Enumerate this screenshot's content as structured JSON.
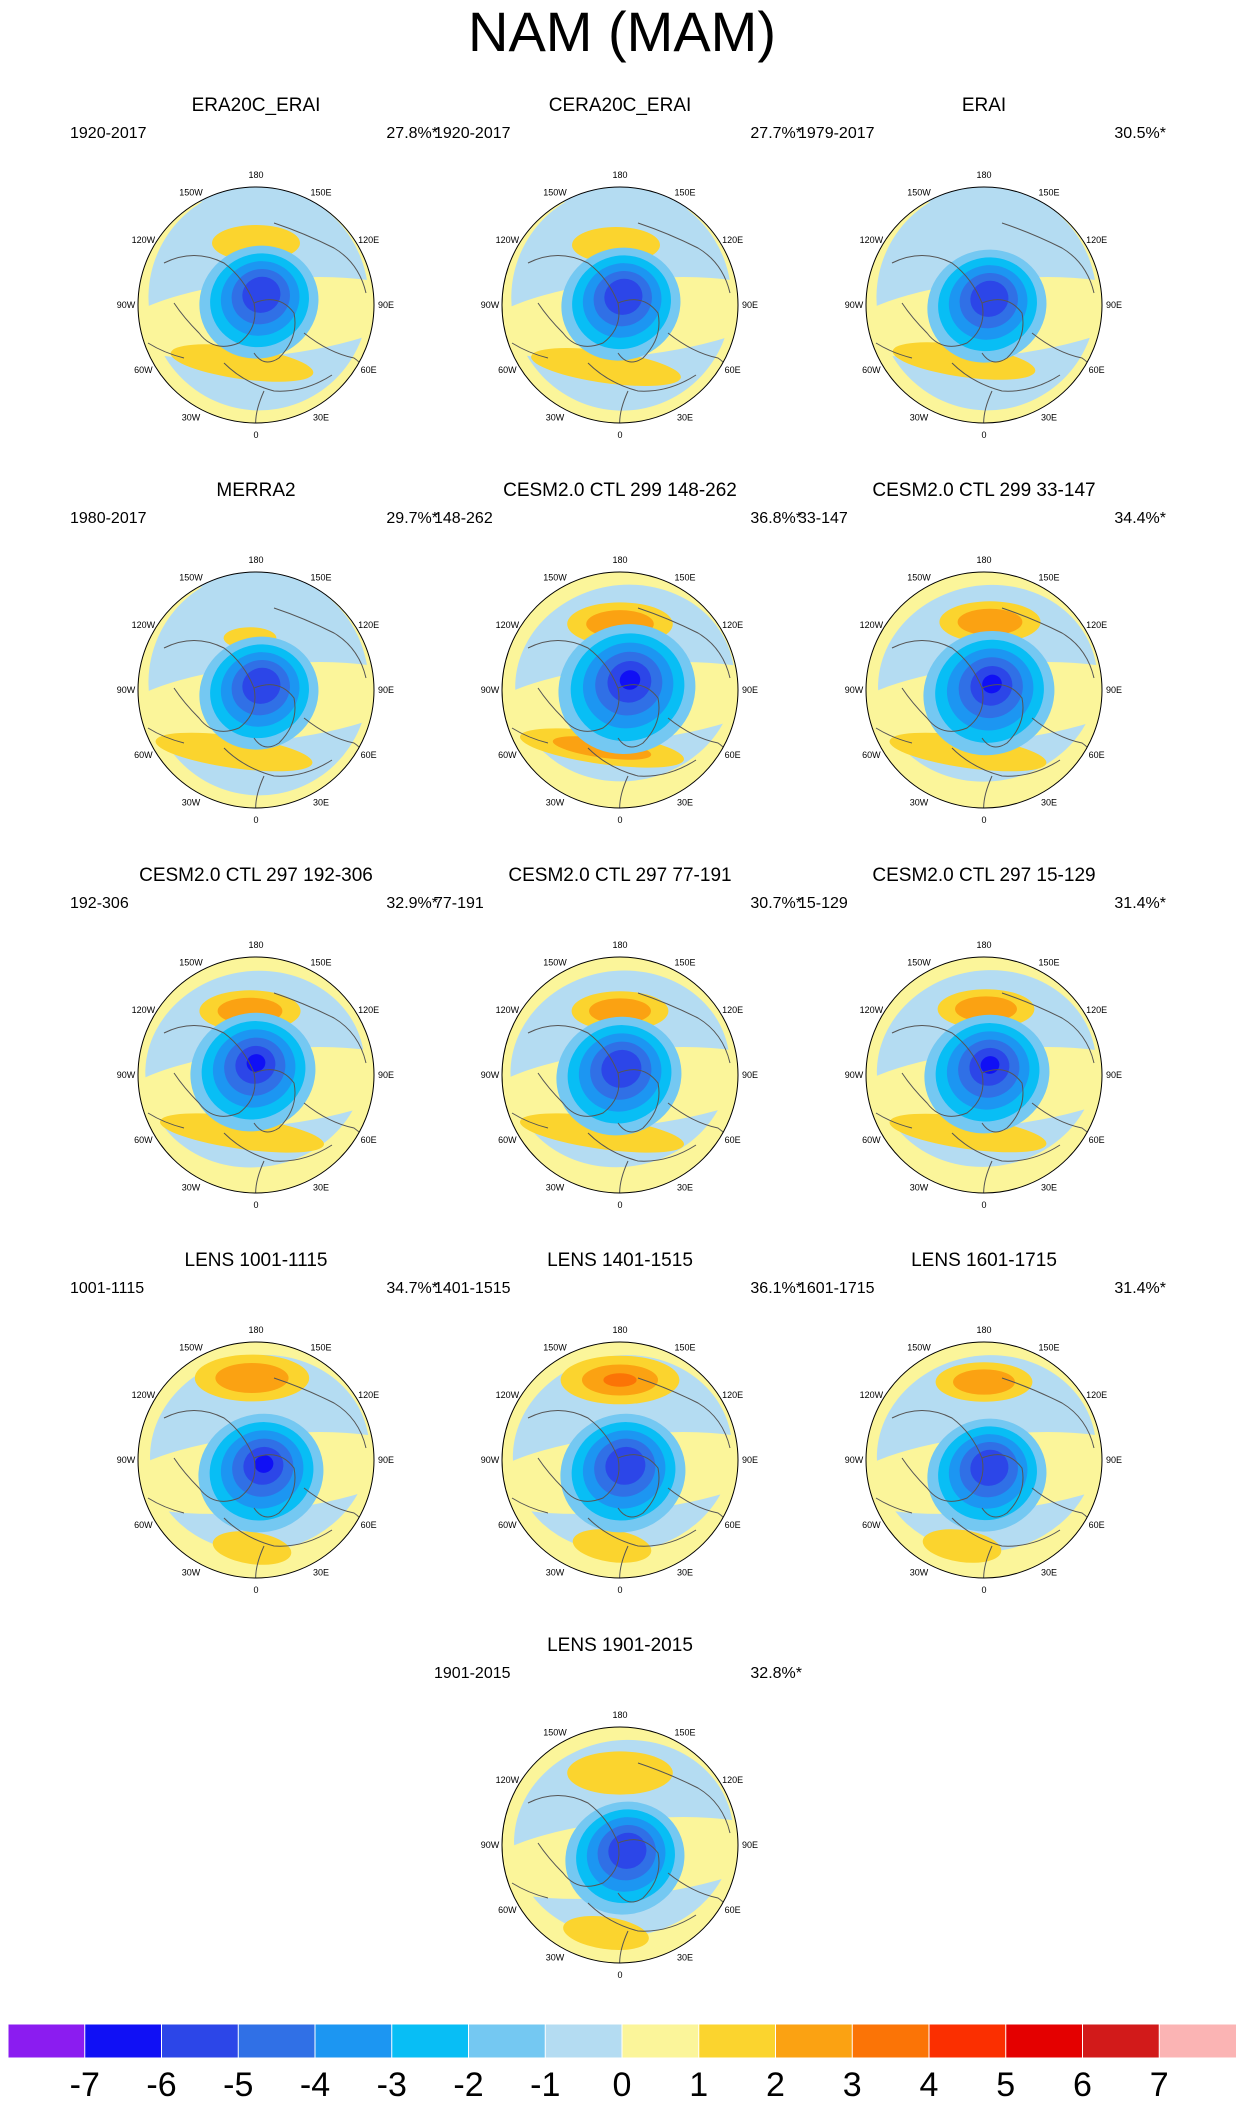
{
  "title": "NAM (MAM)",
  "lon_labels": [
    "180",
    "150E",
    "120E",
    "90E",
    "60E",
    "30E",
    "0",
    "30W",
    "60W",
    "90W",
    "120W",
    "150W"
  ],
  "panels": [
    {
      "title": "ERA20C_ERAI",
      "years": "1920-2017",
      "pct": "27.8%*",
      "style": 0
    },
    {
      "title": "CERA20C_ERAI",
      "years": "1920-2017",
      "pct": "27.7%*",
      "style": 1
    },
    {
      "title": "ERAI",
      "years": "1979-2017",
      "pct": "30.5%*",
      "style": 2
    },
    {
      "title": "MERRA2",
      "years": "1980-2017",
      "pct": "29.7%*",
      "style": 3
    },
    {
      "title": "CESM2.0 CTL 299 148-262",
      "years": "148-262",
      "pct": "36.8%*",
      "style": 4
    },
    {
      "title": "CESM2.0 CTL 299 33-147",
      "years": "33-147",
      "pct": "34.4%*",
      "style": 5
    },
    {
      "title": "CESM2.0 CTL 297 192-306",
      "years": "192-306",
      "pct": "32.9%*",
      "style": 6
    },
    {
      "title": "CESM2.0 CTL 297 77-191",
      "years": "77-191",
      "pct": "30.7%*",
      "style": 7
    },
    {
      "title": "CESM2.0 CTL 297 15-129",
      "years": "15-129",
      "pct": "31.4%*",
      "style": 8
    },
    {
      "title": "LENS 1001-1115",
      "years": "1001-1115",
      "pct": "34.7%*",
      "style": 9
    },
    {
      "title": "LENS 1401-1515",
      "years": "1401-1515",
      "pct": "36.1%*",
      "style": 10
    },
    {
      "title": "LENS 1601-1715",
      "years": "1601-1715",
      "pct": "31.4%*",
      "style": 11
    },
    {
      "title": "LENS 1901-2015",
      "years": "1901-2015",
      "pct": "32.8%*",
      "style": 12
    }
  ],
  "colorbar": {
    "labels": [
      "-7",
      "-6",
      "-5",
      "-4",
      "-3",
      "-2",
      "-1",
      "0",
      "1",
      "2",
      "3",
      "4",
      "5",
      "6",
      "7"
    ],
    "colors": [
      "#8b1cf0",
      "#1010f5",
      "#2c46e8",
      "#3070e6",
      "#1c96f2",
      "#08bef5",
      "#74c8f2",
      "#b4dcf2",
      "#fbf59a",
      "#fbd42e",
      "#fba212",
      "#fb7406",
      "#fb2f00",
      "#e40000",
      "#d21a1a",
      "#fbb4b4"
    ]
  },
  "chart_data": {
    "type": "heatmap",
    "title": "NAM (MAM)",
    "description_units": "polar stereographic regression maps; colorbar levels",
    "colorbar_levels": [
      -7,
      -6,
      -5,
      -4,
      -3,
      -2,
      -1,
      0,
      1,
      2,
      3,
      4,
      5,
      6,
      7
    ],
    "panels": [
      {
        "name": "ERA20C_ERAI",
        "period": "1920-2017",
        "explained_variance_percent": 27.8,
        "polar_min": -5,
        "pacific_max": 2,
        "atlantic_max": 2
      },
      {
        "name": "CERA20C_ERAI",
        "period": "1920-2017",
        "explained_variance_percent": 27.7,
        "polar_min": -5,
        "pacific_max": 2,
        "atlantic_max": 2
      },
      {
        "name": "ERAI",
        "period": "1979-2017",
        "explained_variance_percent": 30.5,
        "polar_min": -5,
        "pacific_max": 1,
        "atlantic_max": 2
      },
      {
        "name": "MERRA2",
        "period": "1980-2017",
        "explained_variance_percent": 29.7,
        "polar_min": -5,
        "pacific_max": 2,
        "atlantic_max": 2
      },
      {
        "name": "CESM2.0 CTL 299 148-262",
        "period": "148-262",
        "explained_variance_percent": 36.8,
        "polar_min": -6,
        "pacific_max": 3,
        "atlantic_max": 3
      },
      {
        "name": "CESM2.0 CTL 299 33-147",
        "period": "33-147",
        "explained_variance_percent": 34.4,
        "polar_min": -6,
        "pacific_max": 3,
        "atlantic_max": 2
      },
      {
        "name": "CESM2.0 CTL 297 192-306",
        "period": "192-306",
        "explained_variance_percent": 32.9,
        "polar_min": -6,
        "pacific_max": 3,
        "atlantic_max": 2
      },
      {
        "name": "CESM2.0 CTL 297 77-191",
        "period": "77-191",
        "explained_variance_percent": 30.7,
        "polar_min": -5,
        "pacific_max": 3,
        "atlantic_max": 2
      },
      {
        "name": "CESM2.0 CTL 297 15-129",
        "period": "15-129",
        "explained_variance_percent": 31.4,
        "polar_min": -6,
        "pacific_max": 3,
        "atlantic_max": 2
      },
      {
        "name": "LENS 1001-1115",
        "period": "1001-1115",
        "explained_variance_percent": 34.7,
        "polar_min": -6,
        "pacific_max": 3,
        "atlantic_max": 2
      },
      {
        "name": "LENS 1401-1515",
        "period": "1401-1515",
        "explained_variance_percent": 36.1,
        "polar_min": -5,
        "pacific_max": 4,
        "atlantic_max": 2
      },
      {
        "name": "LENS 1601-1715",
        "period": "1601-1715",
        "explained_variance_percent": 31.4,
        "polar_min": -5,
        "pacific_max": 3,
        "atlantic_max": 2
      },
      {
        "name": "LENS 1901-2015",
        "period": "1901-2015",
        "explained_variance_percent": 32.8,
        "polar_min": -5,
        "pacific_max": 2,
        "atlantic_max": 2
      }
    ]
  }
}
